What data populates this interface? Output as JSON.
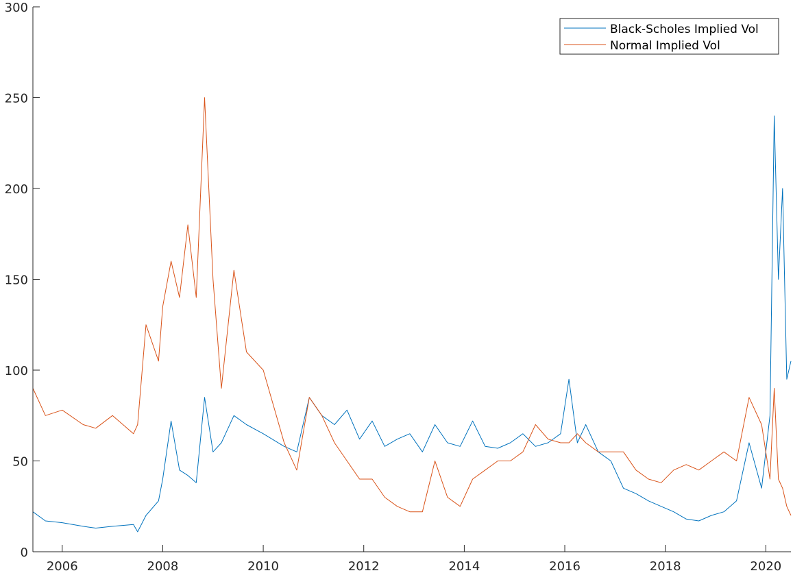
{
  "chart_data": {
    "type": "line",
    "title": "",
    "xlabel": "",
    "ylabel": "",
    "xlim": [
      "2005-06-01",
      "2020-07-01"
    ],
    "ylim": [
      0,
      300
    ],
    "x_ticks": [
      "2006",
      "2008",
      "2010",
      "2012",
      "2014",
      "2016",
      "2018",
      "2020"
    ],
    "y_ticks": [
      "0",
      "50",
      "100",
      "150",
      "200",
      "250",
      "300"
    ],
    "grid": false,
    "legend_position": "top-right",
    "series": [
      {
        "name": "Black-Scholes Implied Vol",
        "color": "#0072BD",
        "x": [
          "2005-06",
          "2005-09",
          "2006-01",
          "2006-06",
          "2006-09",
          "2007-01",
          "2007-06",
          "2007-07",
          "2007-09",
          "2007-12",
          "2008-01",
          "2008-03",
          "2008-05",
          "2008-07",
          "2008-09",
          "2008-11",
          "2009-01",
          "2009-03",
          "2009-06",
          "2009-09",
          "2010-01",
          "2010-06",
          "2010-09",
          "2010-12",
          "2011-03",
          "2011-06",
          "2011-09",
          "2011-12",
          "2012-03",
          "2012-06",
          "2012-09",
          "2012-12",
          "2013-03",
          "2013-06",
          "2013-09",
          "2013-12",
          "2014-03",
          "2014-06",
          "2014-09",
          "2014-12",
          "2015-03",
          "2015-06",
          "2015-09",
          "2015-12",
          "2016-02",
          "2016-04",
          "2016-06",
          "2016-09",
          "2016-12",
          "2017-03",
          "2017-06",
          "2017-09",
          "2017-12",
          "2018-03",
          "2018-06",
          "2018-09",
          "2018-12",
          "2019-03",
          "2019-06",
          "2019-09",
          "2019-12",
          "2020-02",
          "2020-03",
          "2020-04",
          "2020-05",
          "2020-06",
          "2020-07"
        ],
        "values": [
          22,
          17,
          16,
          14,
          13,
          14,
          15,
          11,
          20,
          28,
          40,
          72,
          45,
          42,
          38,
          85,
          55,
          60,
          75,
          70,
          65,
          58,
          55,
          85,
          75,
          70,
          78,
          62,
          72,
          58,
          62,
          65,
          55,
          70,
          60,
          58,
          72,
          58,
          57,
          60,
          65,
          58,
          60,
          65,
          95,
          60,
          70,
          55,
          50,
          35,
          32,
          28,
          25,
          22,
          18,
          17,
          20,
          22,
          28,
          60,
          35,
          75,
          240,
          150,
          200,
          95,
          105
        ]
      },
      {
        "name": "Normal Implied Vol",
        "color": "#D95319",
        "x": [
          "2005-06",
          "2005-09",
          "2006-01",
          "2006-06",
          "2006-09",
          "2007-01",
          "2007-06",
          "2007-07",
          "2007-09",
          "2007-12",
          "2008-01",
          "2008-03",
          "2008-05",
          "2008-07",
          "2008-09",
          "2008-11",
          "2009-01",
          "2009-03",
          "2009-06",
          "2009-09",
          "2010-01",
          "2010-06",
          "2010-09",
          "2010-12",
          "2011-03",
          "2011-06",
          "2011-09",
          "2011-12",
          "2012-03",
          "2012-06",
          "2012-09",
          "2012-12",
          "2013-03",
          "2013-06",
          "2013-09",
          "2013-12",
          "2014-03",
          "2014-06",
          "2014-09",
          "2014-12",
          "2015-03",
          "2015-06",
          "2015-09",
          "2015-12",
          "2016-02",
          "2016-04",
          "2016-06",
          "2016-09",
          "2016-12",
          "2017-03",
          "2017-06",
          "2017-09",
          "2017-12",
          "2018-03",
          "2018-06",
          "2018-09",
          "2018-12",
          "2019-03",
          "2019-06",
          "2019-09",
          "2019-12",
          "2020-02",
          "2020-03",
          "2020-04",
          "2020-05",
          "2020-06",
          "2020-07"
        ],
        "values": [
          90,
          75,
          78,
          70,
          68,
          75,
          65,
          70,
          125,
          105,
          135,
          160,
          140,
          180,
          140,
          250,
          150,
          90,
          155,
          110,
          100,
          60,
          45,
          85,
          75,
          60,
          50,
          40,
          40,
          30,
          25,
          22,
          22,
          50,
          30,
          25,
          40,
          45,
          50,
          50,
          55,
          70,
          62,
          60,
          60,
          65,
          60,
          55,
          55,
          55,
          45,
          40,
          38,
          45,
          48,
          45,
          50,
          55,
          50,
          85,
          70,
          40,
          90,
          40,
          35,
          25,
          20
        ]
      }
    ]
  }
}
